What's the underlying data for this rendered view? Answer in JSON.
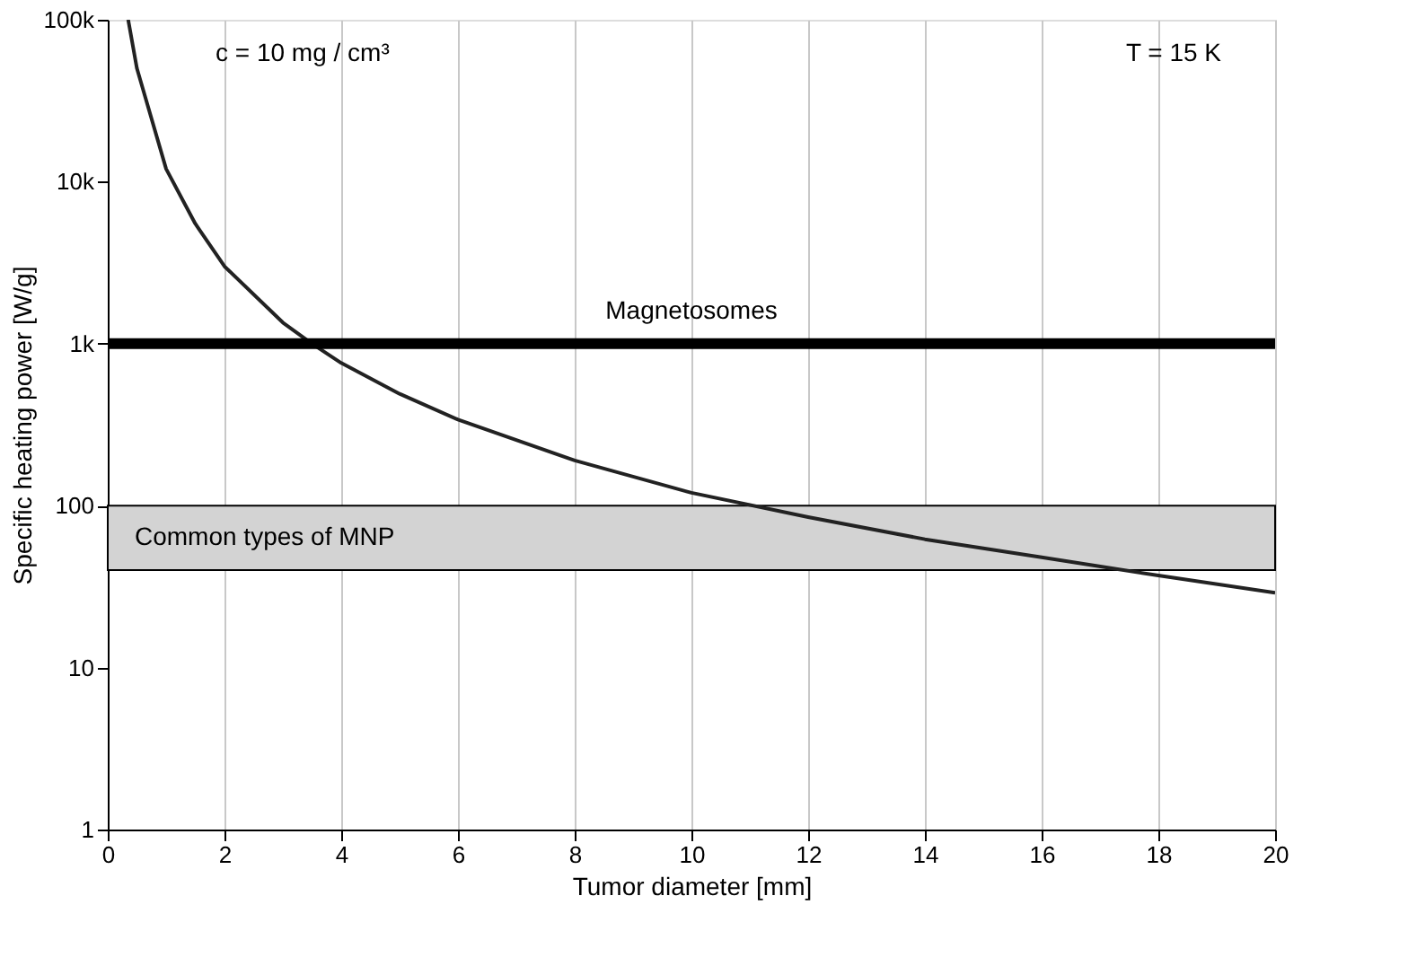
{
  "chart_data": {
    "type": "line",
    "xlabel": "Tumor diameter [mm]",
    "ylabel": "Specific heating power [W/g]",
    "x": [
      0.35,
      0.5,
      1,
      1.5,
      2,
      3,
      3.5,
      4,
      5,
      6,
      8,
      10,
      12,
      14,
      16,
      18,
      20
    ],
    "series": [
      {
        "color": "#222222",
        "values": [
          100000,
          50000,
          12000,
          5500,
          3000,
          1350,
          1000,
          760,
          490,
          340,
          190,
          120,
          85,
          62,
          48,
          37,
          29
        ]
      }
    ],
    "log": "y",
    "xlim": [
      0,
      20
    ],
    "ylim": [
      1,
      100000
    ],
    "xticks": [
      0,
      2,
      4,
      6,
      8,
      10,
      12,
      14,
      16,
      18,
      20
    ],
    "yticks": [
      1,
      10,
      100,
      {
        "value": 1000,
        "label": "1k"
      },
      {
        "value": 10000,
        "label": "10k"
      },
      {
        "value": 100000,
        "label": "100k"
      }
    ],
    "grid": "x",
    "marker": "none",
    "line_style": "solid",
    "ref_lines": [
      {
        "axis": "y",
        "value": 1000,
        "label": "Magnetosomes",
        "color": "#000000"
      }
    ],
    "bands": [
      {
        "axis": "y",
        "from": 40,
        "to": 100,
        "label": "Common types of MNP",
        "color": "#d3d3d3"
      }
    ],
    "annotations": [
      "c = 10 mg / cm³",
      "T = 15 K"
    ]
  }
}
